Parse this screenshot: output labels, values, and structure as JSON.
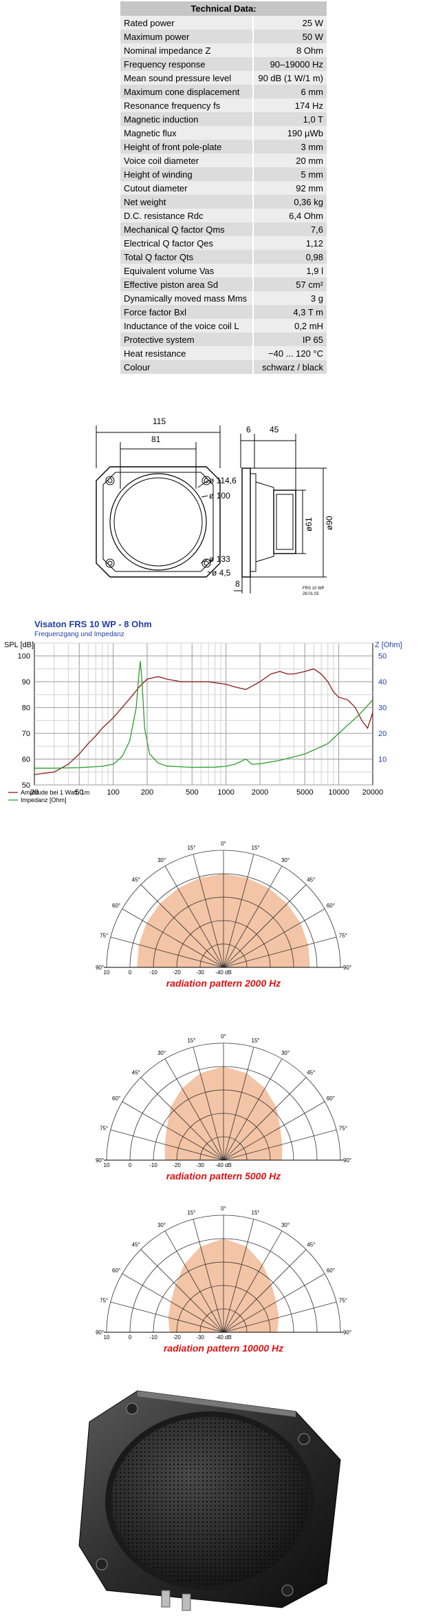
{
  "tech_data": {
    "title": "Technical Data:",
    "rows": [
      {
        "label": "Rated power",
        "value": "25 W"
      },
      {
        "label": "Maximum power",
        "value": "50 W"
      },
      {
        "label": "Nominal impedance Z",
        "value": "8 Ohm"
      },
      {
        "label": "Frequency response",
        "value": "90–19000 Hz"
      },
      {
        "label": "Mean sound pressure level",
        "value": "90 dB (1 W/1 m)"
      },
      {
        "label": "Maximum cone displacement",
        "value": "6 mm"
      },
      {
        "label": "Resonance frequency fs",
        "value": "174 Hz"
      },
      {
        "label": "Magnetic induction",
        "value": "1,0 T"
      },
      {
        "label": "Magnetic flux",
        "value": "190 µWb"
      },
      {
        "label": "Height of front pole-plate",
        "value": "3 mm"
      },
      {
        "label": "Voice coil diameter",
        "value": "20 mm"
      },
      {
        "label": "Height of winding",
        "value": "5 mm"
      },
      {
        "label": "Cutout diameter",
        "value": "92 mm"
      },
      {
        "label": "Net weight",
        "value": "0,36 kg"
      },
      {
        "label": "D.C. resistance Rdc",
        "value": "6,4 Ohm"
      },
      {
        "label": "Mechanical Q factor Qms",
        "value": "7,6"
      },
      {
        "label": "Electrical Q factor Qes",
        "value": "1,12"
      },
      {
        "label": "Total Q factor Qts",
        "value": "0,98"
      },
      {
        "label": "Equivalent volume Vas",
        "value": "1,9 l"
      },
      {
        "label": "Effective piston area Sd",
        "value": "57 cm²"
      },
      {
        "label": "Dynamically moved mass Mms",
        "value": "3 g"
      },
      {
        "label": "Force factor Bxl",
        "value": "4,3 T m"
      },
      {
        "label": "Inductance of the voice coil L",
        "value": "0,2 mH"
      },
      {
        "label": "Protective system",
        "value": "IP 65"
      },
      {
        "label": "Heat resistance",
        "value": "−40 ... 120 °C"
      },
      {
        "label": "Colour",
        "value": "schwarz / black"
      }
    ]
  },
  "drawing": {
    "dim_width": "115",
    "dim_inner": "81",
    "dim_front": "6",
    "dim_depth": "45",
    "dim_d1": "ø 114,6",
    "dim_d2": "ø 100",
    "dim_d3": "ø 133",
    "dim_hole": "ø 4,5",
    "dim_magnet": "ø61",
    "dim_body": "ø90",
    "dim_flange": "8",
    "model": "FRS 10 WP",
    "date": "28.01.03"
  },
  "chart_data": [
    {
      "type": "line",
      "title": "Visaton FRS 10 WP - 8 Ohm",
      "subtitle": "Frequenzgang und Impedanz",
      "ylabel": "SPL [dB]",
      "y2label": "Z [Ohm]",
      "x_scale": "log",
      "xlim": [
        20,
        20000
      ],
      "ylim": [
        50,
        105
      ],
      "y2lim": [
        0,
        55
      ],
      "x_ticks": [
        20,
        50,
        100,
        200,
        500,
        1000,
        2000,
        5000,
        10000,
        20000
      ],
      "y_ticks": [
        50,
        60,
        70,
        80,
        90,
        100
      ],
      "y2_ticks": [
        10,
        20,
        30,
        40,
        50
      ],
      "grid": true,
      "legend": "bottom-left",
      "series": [
        {
          "name": "Amplitude bei 1 Watt, 1m",
          "color": "#8b1a1a",
          "axis": "left",
          "x": [
            20,
            30,
            40,
            50,
            60,
            70,
            80,
            100,
            120,
            150,
            170,
            200,
            250,
            300,
            400,
            500,
            700,
            1000,
            1200,
            1500,
            2000,
            2500,
            3000,
            3500,
            4000,
            5000,
            6000,
            7000,
            8000,
            9000,
            10000,
            12000,
            14000,
            16000,
            18000,
            20000
          ],
          "values": [
            54,
            55,
            58,
            62,
            66,
            69,
            72,
            76,
            80,
            85,
            88,
            91,
            92,
            91,
            90,
            90,
            90,
            89,
            88,
            87,
            90,
            93,
            94,
            93,
            93,
            94,
            95,
            93,
            90,
            86,
            84,
            83,
            80,
            75,
            72,
            78
          ]
        },
        {
          "name": "Impedanz [Ohm]",
          "color": "#2c9c2c",
          "axis": "right",
          "x": [
            20,
            30,
            50,
            80,
            100,
            120,
            140,
            160,
            170,
            174,
            180,
            190,
            210,
            250,
            300,
            500,
            800,
            1000,
            1200,
            1500,
            1700,
            2000,
            3000,
            5000,
            8000,
            10000,
            15000,
            20000
          ],
          "values": [
            6.5,
            6.5,
            6.7,
            7.2,
            8,
            11,
            17,
            30,
            44,
            48,
            40,
            22,
            12,
            8.5,
            7.3,
            6.8,
            6.9,
            7.2,
            8,
            10,
            8,
            8.2,
            9.5,
            12,
            16,
            20,
            27,
            33
          ]
        }
      ]
    },
    {
      "type": "polar",
      "title": "radiation pattern 2000 Hz",
      "frequency": "2000 Hz",
      "angle_labels": [
        "0°",
        "15°",
        "30°",
        "45°",
        "60°",
        "75°",
        "90°"
      ],
      "radial_labels": [
        "10",
        "0",
        "-10",
        "-20",
        "-30",
        "-40 dB"
      ],
      "rlim": [
        -40,
        10
      ],
      "angles": [
        0,
        15,
        30,
        45,
        60,
        75,
        90
      ],
      "values": [
        0,
        -0.5,
        -1,
        -1.5,
        -2,
        -2.5,
        -3
      ]
    },
    {
      "type": "polar",
      "title": "radiation pattern 5000 Hz",
      "frequency": "5000 Hz",
      "angle_labels": [
        "0°",
        "15°",
        "30°",
        "45°",
        "60°",
        "75°",
        "90°"
      ],
      "radial_labels": [
        "10",
        "0",
        "-10",
        "-20",
        "-30",
        "-40 dB"
      ],
      "rlim": [
        -40,
        10
      ],
      "angles": [
        0,
        15,
        30,
        45,
        60,
        75,
        90
      ],
      "values": [
        0,
        -1.5,
        -4.5,
        -8,
        -12,
        -14,
        -15
      ]
    },
    {
      "type": "polar",
      "title": "radiation pattern 10000 Hz",
      "frequency": "10000 Hz",
      "angle_labels": [
        "0°",
        "15°",
        "30°",
        "45°",
        "60°",
        "75°",
        "90°"
      ],
      "radial_labels": [
        "10",
        "0",
        "-10",
        "-20",
        "-30",
        "-40 dB"
      ],
      "rlim": [
        -40,
        10
      ],
      "angles": [
        0,
        15,
        30,
        45,
        60,
        75,
        90
      ],
      "values": [
        0,
        -2,
        -6.5,
        -11,
        -14,
        -15.5,
        -17
      ]
    }
  ],
  "colors": {
    "polar_fill": "#f3c4a6",
    "polar_caption": "#e01010",
    "chart_title": "#1f3fa8"
  }
}
